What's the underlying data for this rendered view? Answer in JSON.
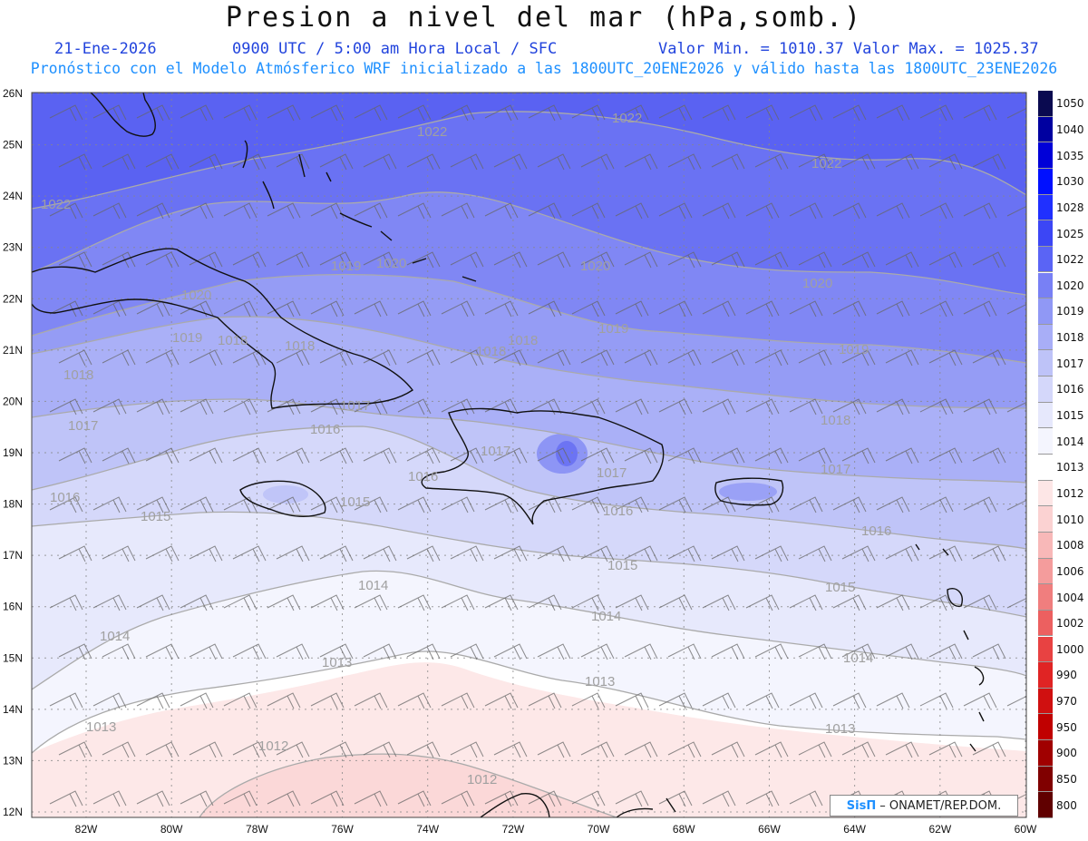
{
  "title": "Presion a nivel del mar (hPa,somb.)",
  "date": "21-Ene-2026",
  "time_info": "0900 UTC / 5:00 am Hora Local / SFC",
  "min_max": "Valor Min. = 1010.37  Valor Max. = 1025.37",
  "forecast_note": "Pronóstico con el Modelo Atmósferico WRF inicializado a las 1800UTC_20ENE2026 y válido hasta las  1800UTC_23ENE2026",
  "credit": {
    "brand": "SisΠ",
    "org": " – ONAMET/REP.DOM."
  },
  "lat_labels": [
    "26N",
    "25N",
    "24N",
    "23N",
    "22N",
    "21N",
    "20N",
    "19N",
    "18N",
    "17N",
    "16N",
    "15N",
    "14N",
    "13N",
    "12N"
  ],
  "lon_labels": [
    "82W",
    "80W",
    "78W",
    "76W",
    "74W",
    "72W",
    "70W",
    "68W",
    "66W",
    "64W",
    "62W",
    "60W"
  ],
  "legend": [
    {
      "label": "1050",
      "color": "#0a0a50"
    },
    {
      "label": "1040",
      "color": "#0000a0"
    },
    {
      "label": "1035",
      "color": "#0000d8"
    },
    {
      "label": "1030",
      "color": "#0010ff"
    },
    {
      "label": "1028",
      "color": "#2030ff"
    },
    {
      "label": "1025",
      "color": "#3c46f5"
    },
    {
      "label": "1022",
      "color": "#5a64f5"
    },
    {
      "label": "1020",
      "color": "#7880f5"
    },
    {
      "label": "1019",
      "color": "#9098f5"
    },
    {
      "label": "1018",
      "color": "#a8aef7"
    },
    {
      "label": "1017",
      "color": "#bec3f8"
    },
    {
      "label": "1016",
      "color": "#d4d7fa"
    },
    {
      "label": "1015",
      "color": "#e6e8fc"
    },
    {
      "label": "1014",
      "color": "#f4f5fe"
    },
    {
      "label": "1013",
      "color": "#ffffff"
    },
    {
      "label": "1012",
      "color": "#fde6e6"
    },
    {
      "label": "1010",
      "color": "#fbd2d2"
    },
    {
      "label": "1008",
      "color": "#f8b8b8"
    },
    {
      "label": "1006",
      "color": "#f49c9c"
    },
    {
      "label": "1004",
      "color": "#f07e7e"
    },
    {
      "label": "1002",
      "color": "#ec6060"
    },
    {
      "label": "1000",
      "color": "#e84242"
    },
    {
      "label": "990",
      "color": "#e02424"
    },
    {
      "label": "970",
      "color": "#d01010"
    },
    {
      "label": "950",
      "color": "#c00000"
    },
    {
      "label": "900",
      "color": "#a00000"
    },
    {
      "label": "850",
      "color": "#800000"
    },
    {
      "label": "800",
      "color": "#600000"
    }
  ],
  "contour_labels": [
    "1022",
    "1022",
    "1022",
    "1022",
    "1020",
    "1020",
    "1020",
    "1020",
    "1019",
    "1019",
    "1019",
    "1019",
    "1018",
    "1018",
    "1018",
    "1018",
    "1018",
    "1018",
    "1017",
    "1017",
    "1017",
    "1017",
    "1017",
    "1016",
    "1016",
    "1016",
    "1016",
    "1016",
    "1015",
    "1015",
    "1015",
    "1015",
    "1014",
    "1014",
    "1014",
    "1014",
    "1013",
    "1013",
    "1013",
    "1013",
    "1012",
    "1012"
  ]
}
